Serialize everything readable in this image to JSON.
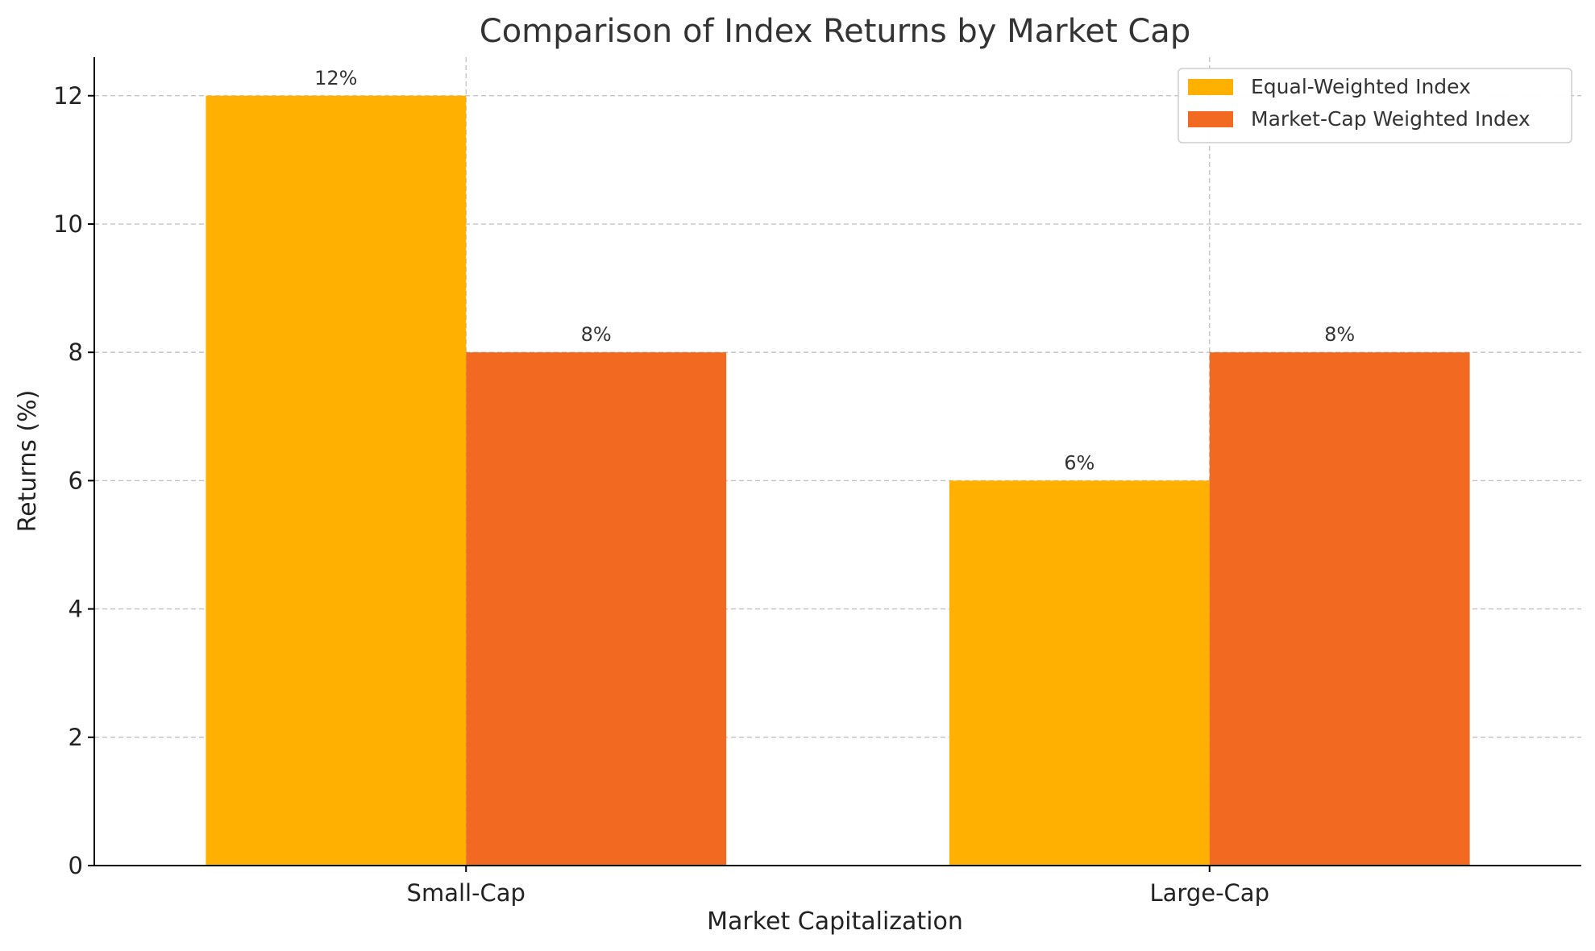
{
  "chart_data": {
    "type": "bar",
    "title": "Comparison of Index Returns by Market Cap",
    "xlabel": "Market Capitalization",
    "ylabel": "Returns (%)",
    "categories": [
      "Small-Cap",
      "Large-Cap"
    ],
    "ylim": [
      0,
      12.6
    ],
    "yticks": [
      0,
      2,
      4,
      6,
      8,
      10,
      12
    ],
    "grid": true,
    "legend_position": "top-right",
    "series": [
      {
        "name": "Equal-Weighted Index",
        "color": "#FFB000",
        "values": [
          12,
          6
        ],
        "labels": [
          "12%",
          "6%"
        ]
      },
      {
        "name": "Market-Cap Weighted Index",
        "color": "#F26A22",
        "values": [
          8,
          8
        ],
        "labels": [
          "8%",
          "8%"
        ]
      }
    ]
  }
}
